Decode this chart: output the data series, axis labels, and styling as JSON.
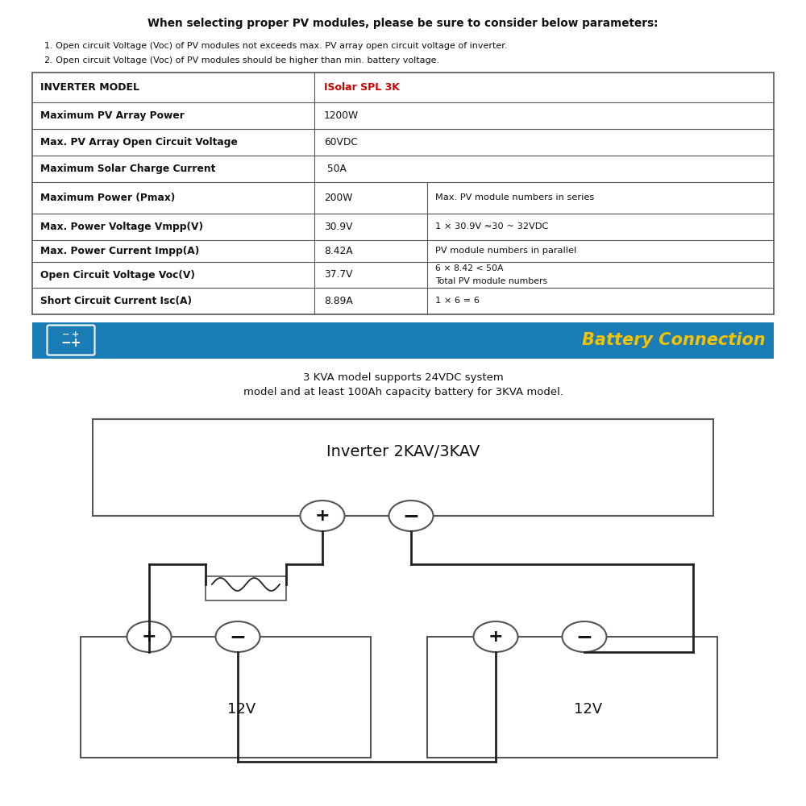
{
  "bg_color": "#ffffff",
  "header_text": "When selecting proper PV modules, please be sure to consider below parameters:",
  "notes": [
    "1. Open circuit Voltage (Voc) of PV modules not exceeds max. PV array open circuit voltage of inverter.",
    "2. Open circuit Voltage (Voc) of PV modules should be higher than min. battery voltage."
  ],
  "table_model_label": "INVERTER MODEL",
  "table_model_value": "ISolar SPL 3K",
  "simple_rows": [
    [
      "Maximum PV Array Power",
      "1200W"
    ],
    [
      "Max. PV Array Open Circuit Voltage",
      "60VDC"
    ],
    [
      "Maximum Solar Charge Current",
      " 50A"
    ]
  ],
  "complex_rows": [
    [
      "Maximum Power (Pmax)",
      "200W",
      "Max. PV module numbers in series"
    ],
    [
      "Max. Power Voltage Vmpp(V)",
      "30.9V",
      "1 × 30.9V ≈30 ~ 32VDC"
    ],
    [
      "Max. Power Current Impp(A)",
      "8.42A",
      "PV module numbers in parallel"
    ],
    [
      "Open Circuit Voltage Voc(V)",
      "37.7V",
      "6 × 8.42 < 50A\nTotal PV module numbers"
    ],
    [
      "Short Circuit Current Isc(A)",
      "8.89A",
      "1 × 6 = 6"
    ]
  ],
  "banner_bg": "#1a7db5",
  "banner_text": "Battery Connection",
  "banner_text_color": "#f5c200",
  "battery_desc_line1": "3 KVA model supports 24VDC system",
  "battery_desc_line2": "model and at least 100Ah capacity battery for 3KVA model.",
  "inverter_label": "Inverter 2KAV/3KAV",
  "battery_label": "12V",
  "line_color": "#222222",
  "border_color": "#555555",
  "red_color": "#cc0000"
}
